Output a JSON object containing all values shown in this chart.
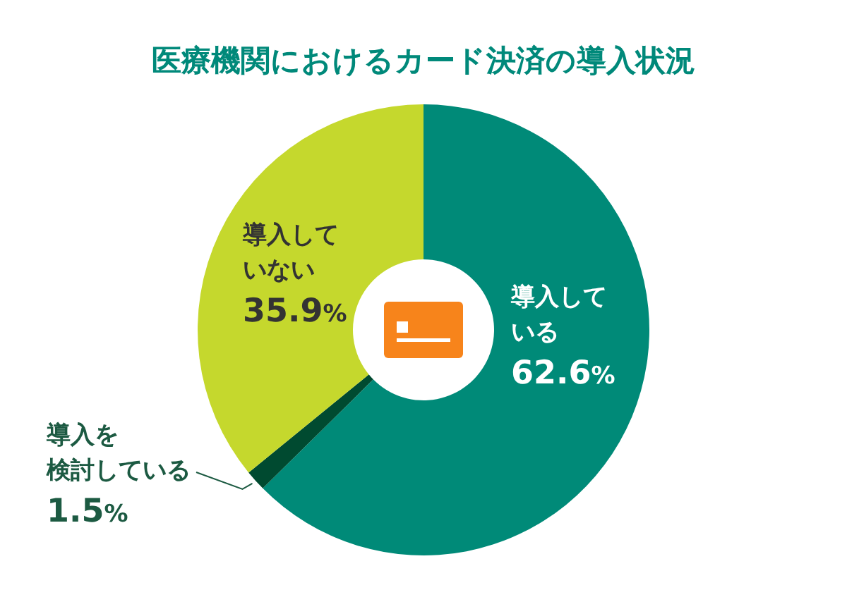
{
  "chart_data": {
    "type": "donut",
    "title": "医療機関におけるカード決済の導入状況",
    "categories": [
      "導入している",
      "導入を検討している",
      "導入していない"
    ],
    "values": [
      62.6,
      1.5,
      35.9
    ],
    "colors": [
      "#008a78",
      "#004a30",
      "#c5d82d"
    ],
    "value_labels": [
      "62.6%",
      "1.5%",
      "35.9%"
    ]
  }
}
